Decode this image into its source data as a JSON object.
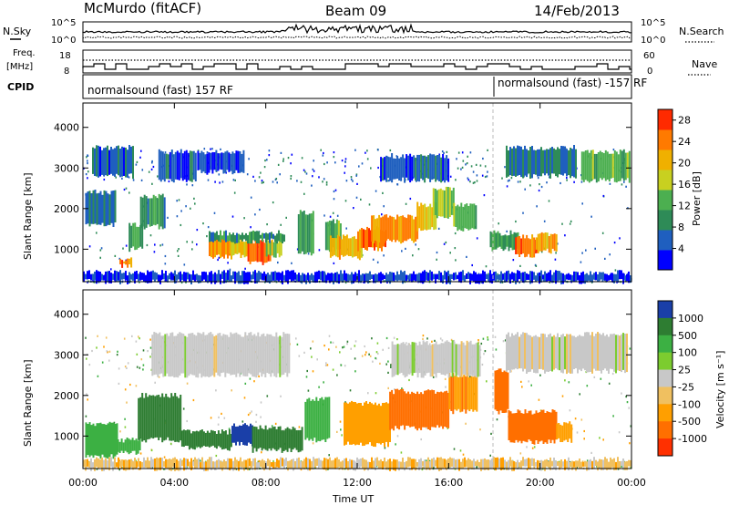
{
  "header": {
    "station": "McMurdo (fitACF)",
    "beam": "Beam 09",
    "date": "14/Feb/2013"
  },
  "strips": {
    "nsky_label": "N.Sky",
    "nsearch_label": "N.Search",
    "noise_ticks": [
      "10^5",
      "10^0"
    ],
    "freq_label_1": "Freq.",
    "freq_label_2": "[MHz]",
    "freq_ticks": [
      "18",
      "8"
    ],
    "nave_label": "Nave",
    "nave_ticks": [
      "60",
      "0"
    ],
    "cpid_label": "CPID",
    "cpid_segments": [
      {
        "text": "normalsound (fast) 157 RF",
        "start_hour": 0
      },
      {
        "text": "normalsound (fast) -157 RF",
        "start_hour": 18.1
      }
    ]
  },
  "panels": {
    "y_label": "Slant Range [km]",
    "x_label": "Time UT",
    "power_label": "Power [dB]",
    "velocity_label": "Velocity [m s⁻¹]"
  },
  "colors": {
    "power_scale": [
      "#0000ff",
      "#1f5fbf",
      "#2e8b57",
      "#4caf50",
      "#c8d020",
      "#f0b000",
      "#ff7a00",
      "#ff2a00"
    ],
    "velocity_scale": [
      "#1a3fa8",
      "#2e7d32",
      "#3cb043",
      "#7ccc2f",
      "#c8c8c8",
      "#f0c060",
      "#ff9f00",
      "#ff6f00",
      "#ff3000"
    ]
  },
  "chart_data": [
    {
      "type": "heatmap",
      "title": "Power",
      "xlabel": "Time UT",
      "ylabel": "Slant Range [km]",
      "xlim_hours": [
        0,
        24
      ],
      "ylim": [
        200,
        4600
      ],
      "x_ticks": [
        "00:00",
        "04:00",
        "08:00",
        "12:00",
        "16:00",
        "20:00",
        "00:00"
      ],
      "y_ticks": [
        1000,
        2000,
        3000,
        4000
      ],
      "colorbar_label": "Power [dB]",
      "colorbar_ticks": [
        4,
        8,
        12,
        16,
        20,
        24,
        28
      ],
      "colorbar_range": [
        0,
        30
      ],
      "regions": [
        {
          "start_h": 1.6,
          "end_h": 2.1,
          "range_lo": 580,
          "range_hi": 760,
          "value": 26
        },
        {
          "start_h": 2.0,
          "end_h": 2.6,
          "range_lo": 1000,
          "range_hi": 1600,
          "value": 12
        },
        {
          "start_h": 2.5,
          "end_h": 3.6,
          "range_lo": 1550,
          "range_hi": 2300,
          "value": 10
        },
        {
          "start_h": 0.1,
          "end_h": 1.4,
          "range_lo": 1600,
          "range_hi": 2400,
          "value": 7
        },
        {
          "start_h": 0.4,
          "end_h": 2.2,
          "range_lo": 2800,
          "range_hi": 3500,
          "value": 6
        },
        {
          "start_h": 3.3,
          "end_h": 4.9,
          "range_lo": 2700,
          "range_hi": 3400,
          "value": 6
        },
        {
          "start_h": 5.5,
          "end_h": 6.5,
          "range_lo": 800,
          "range_hi": 1300,
          "value": 24
        },
        {
          "start_h": 6.4,
          "end_h": 7.2,
          "range_lo": 850,
          "range_hi": 1250,
          "value": 20
        },
        {
          "start_h": 7.2,
          "end_h": 8.2,
          "range_lo": 650,
          "range_hi": 1200,
          "value": 27
        },
        {
          "start_h": 8.0,
          "end_h": 8.7,
          "range_lo": 850,
          "range_hi": 1200,
          "value": 18
        },
        {
          "start_h": 5.5,
          "end_h": 8.8,
          "range_lo": 1200,
          "range_hi": 1400,
          "value": 10
        },
        {
          "start_h": 5.0,
          "end_h": 7.0,
          "range_lo": 2900,
          "range_hi": 3400,
          "value": 5
        },
        {
          "start_h": 9.4,
          "end_h": 10.1,
          "range_lo": 900,
          "range_hi": 1900,
          "value": 12
        },
        {
          "start_h": 10.6,
          "end_h": 11.3,
          "range_lo": 1000,
          "range_hi": 1700,
          "value": 14
        },
        {
          "start_h": 10.8,
          "end_h": 12.2,
          "range_lo": 800,
          "range_hi": 1300,
          "value": 22
        },
        {
          "start_h": 12.0,
          "end_h": 13.2,
          "range_lo": 1000,
          "range_hi": 1500,
          "value": 26
        },
        {
          "start_h": 12.6,
          "end_h": 14.6,
          "range_lo": 1200,
          "range_hi": 1800,
          "value": 24
        },
        {
          "start_h": 14.6,
          "end_h": 15.4,
          "range_lo": 1500,
          "range_hi": 2100,
          "value": 20
        },
        {
          "start_h": 15.3,
          "end_h": 16.2,
          "range_lo": 1800,
          "range_hi": 2500,
          "value": 16
        },
        {
          "start_h": 16.2,
          "end_h": 17.2,
          "range_lo": 1500,
          "range_hi": 2100,
          "value": 14
        },
        {
          "start_h": 13.0,
          "end_h": 16.0,
          "range_lo": 2700,
          "range_hi": 3300,
          "value": 6
        },
        {
          "start_h": 17.8,
          "end_h": 19.0,
          "range_lo": 1000,
          "range_hi": 1400,
          "value": 12
        },
        {
          "start_h": 18.9,
          "end_h": 19.9,
          "range_lo": 850,
          "range_hi": 1300,
          "value": 26
        },
        {
          "start_h": 19.8,
          "end_h": 20.7,
          "range_lo": 950,
          "range_hi": 1350,
          "value": 22
        },
        {
          "start_h": 18.5,
          "end_h": 21.6,
          "range_lo": 2800,
          "range_hi": 3500,
          "value": 8
        },
        {
          "start_h": 21.8,
          "end_h": 23.9,
          "range_lo": 2700,
          "range_hi": 3400,
          "value": 14
        },
        {
          "start_h": 0.0,
          "end_h": 24.0,
          "range_lo": 200,
          "range_hi": 420,
          "value": 4
        }
      ]
    },
    {
      "type": "heatmap",
      "title": "Velocity",
      "xlabel": "Time UT",
      "ylabel": "Slant Range [km]",
      "xlim_hours": [
        0,
        24
      ],
      "ylim": [
        200,
        4600
      ],
      "x_ticks": [
        "00:00",
        "04:00",
        "08:00",
        "12:00",
        "16:00",
        "20:00",
        "00:00"
      ],
      "y_ticks": [
        1000,
        2000,
        3000,
        4000
      ],
      "colorbar_label": "Velocity [m s⁻¹]",
      "colorbar_ticks": [
        "1000",
        "500",
        "100",
        "25",
        "-25",
        "-100",
        "-500",
        "-1000"
      ],
      "regions": [
        {
          "start_h": 0.1,
          "end_h": 1.5,
          "range_lo": 500,
          "range_hi": 1300,
          "value": 150
        },
        {
          "start_h": 1.5,
          "end_h": 2.5,
          "range_lo": 600,
          "range_hi": 900,
          "value": 120
        },
        {
          "start_h": 2.4,
          "end_h": 4.3,
          "range_lo": 900,
          "range_hi": 2000,
          "value": 300
        },
        {
          "start_h": 4.3,
          "end_h": 6.5,
          "range_lo": 700,
          "range_hi": 1100,
          "value": 400
        },
        {
          "start_h": 6.5,
          "end_h": 7.4,
          "range_lo": 800,
          "range_hi": 1300,
          "value": 900
        },
        {
          "start_h": 7.4,
          "end_h": 9.6,
          "range_lo": 650,
          "range_hi": 1200,
          "value": 300
        },
        {
          "start_h": 3.0,
          "end_h": 9.0,
          "range_lo": 2500,
          "range_hi": 3500,
          "value": 0
        },
        {
          "start_h": 9.7,
          "end_h": 10.8,
          "range_lo": 900,
          "range_hi": 1900,
          "value": 150
        },
        {
          "start_h": 11.4,
          "end_h": 13.4,
          "range_lo": 800,
          "range_hi": 1800,
          "value": -150
        },
        {
          "start_h": 13.4,
          "end_h": 16.0,
          "range_lo": 1200,
          "range_hi": 2100,
          "value": -250
        },
        {
          "start_h": 16.0,
          "end_h": 17.2,
          "range_lo": 1600,
          "range_hi": 2500,
          "value": -200
        },
        {
          "start_h": 13.5,
          "end_h": 17.4,
          "range_lo": 2500,
          "range_hi": 3300,
          "value": 0
        },
        {
          "start_h": 18.0,
          "end_h": 18.6,
          "range_lo": 1600,
          "range_hi": 2600,
          "value": -300
        },
        {
          "start_h": 18.6,
          "end_h": 20.7,
          "range_lo": 850,
          "range_hi": 1600,
          "value": -250
        },
        {
          "start_h": 20.7,
          "end_h": 21.4,
          "range_lo": 900,
          "range_hi": 1300,
          "value": -120
        },
        {
          "start_h": 18.5,
          "end_h": 23.8,
          "range_lo": 2600,
          "range_hi": 3500,
          "value": 0
        },
        {
          "start_h": 0.0,
          "end_h": 24.0,
          "range_lo": 200,
          "range_hi": 420,
          "value": -40
        }
      ]
    }
  ]
}
